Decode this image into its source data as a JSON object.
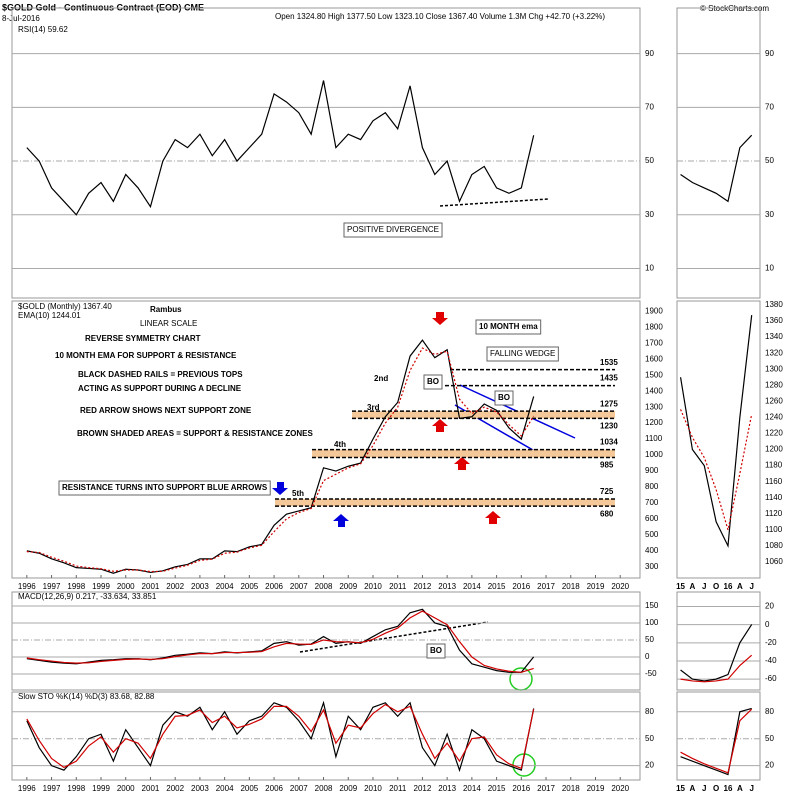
{
  "header": {
    "symbol": "$GOLD Gold - Continuous Contract (EOD) CME",
    "date": "8-Jul-2016",
    "quote": "Open 1324.80  High 1377.50  Low 1323.10  Close 1367.40  Volume 1.3M  Chg +42.70 (+3.22%)",
    "source": "© StockCharts.com"
  },
  "chart_data": [
    {
      "type": "line",
      "label": "RSI(14) 59.62",
      "xlim": [
        1995.4,
        2020.8
      ],
      "ylim": [
        -1,
        107
      ],
      "yticks": [
        10,
        30,
        50,
        70,
        90
      ],
      "grid": true,
      "x": [
        1996,
        1996.5,
        1997,
        1997.5,
        1998,
        1998.5,
        1999,
        1999.5,
        2000,
        2000.5,
        2001,
        2001.5,
        2002,
        2002.5,
        2003,
        2003.5,
        2004,
        2004.5,
        2005,
        2005.5,
        2006,
        2006.5,
        2007,
        2007.5,
        2008,
        2008.5,
        2009,
        2009.5,
        2010,
        2010.5,
        2011,
        2011.5,
        2012,
        2012.5,
        2013,
        2013.5,
        2014,
        2014.5,
        2015,
        2015.5,
        2016,
        2016.5
      ],
      "series": [
        {
          "color": "#000000",
          "values": [
            55,
            50,
            40,
            35,
            30,
            38,
            42,
            35,
            45,
            40,
            33,
            50,
            58,
            55,
            60,
            52,
            58,
            50,
            55,
            60,
            75,
            72,
            68,
            60,
            80,
            55,
            60,
            58,
            65,
            68,
            62,
            78,
            55,
            45,
            50,
            35,
            45,
            48,
            40,
            38,
            40,
            59.62
          ]
        }
      ],
      "annotations": [
        "POSITIVE DIVERGENCE"
      ]
    },
    {
      "type": "line",
      "labels": [
        "$GOLD (Monthly) 1367.40",
        "EMA(10) 1244.01"
      ],
      "xlim": [
        1995.4,
        2020.8
      ],
      "ylim": [
        230,
        1965
      ],
      "yticks": [
        300,
        400,
        500,
        600,
        700,
        800,
        900,
        1000,
        1100,
        1200,
        1300,
        1400,
        1500,
        1600,
        1700,
        1800,
        1900
      ],
      "xticks": [
        1996,
        1997,
        1998,
        1999,
        2000,
        2001,
        2002,
        2003,
        2004,
        2005,
        2006,
        2007,
        2008,
        2009,
        2010,
        2011,
        2012,
        2013,
        2014,
        2015,
        2016,
        2017,
        2018,
        2019,
        2020
      ],
      "x": [
        1996,
        1996.5,
        1997,
        1997.5,
        1998,
        1998.5,
        1999,
        1999.5,
        2000,
        2000.5,
        2001,
        2001.5,
        2002,
        2002.5,
        2003,
        2003.5,
        2004,
        2004.5,
        2005,
        2005.5,
        2006,
        2006.5,
        2007,
        2007.5,
        2008,
        2008.5,
        2009,
        2009.5,
        2010,
        2010.5,
        2011,
        2011.5,
        2012,
        2012.5,
        2013,
        2013.5,
        2014,
        2014.5,
        2015,
        2015.5,
        2016,
        2016.5
      ],
      "series": [
        {
          "color": "#000000",
          "values": [
            400,
            385,
            350,
            325,
            295,
            290,
            285,
            260,
            285,
            280,
            265,
            275,
            300,
            315,
            350,
            350,
            400,
            395,
            425,
            440,
            560,
            630,
            650,
            670,
            920,
            900,
            930,
            950,
            1100,
            1240,
            1330,
            1620,
            1720,
            1610,
            1660,
            1230,
            1240,
            1320,
            1280,
            1170,
            1100,
            1367.4
          ]
        },
        {
          "color": "#d00000",
          "style": "dashed",
          "values": [
            395,
            390,
            360,
            335,
            305,
            295,
            288,
            272,
            280,
            280,
            270,
            272,
            292,
            310,
            340,
            348,
            385,
            392,
            418,
            435,
            520,
            600,
            640,
            665,
            840,
            880,
            920,
            945,
            1060,
            1200,
            1300,
            1530,
            1670,
            1630,
            1650,
            1350,
            1260,
            1300,
            1270,
            1190,
            1120,
            1244.01
          ]
        }
      ],
      "levels": [
        1535,
        1435,
        1275,
        1230,
        1034,
        985,
        725,
        680
      ],
      "annotations": [
        "Rambus",
        "LINEAR SCALE",
        "REVERSE SYMMETRY CHART",
        "10 MONTH EMA FOR SUPPORT & RESISTANCE",
        "BLACK DASHED RAILS = PREVIOUS TOPS",
        "ACTING AS SUPPORT DURING A DECLINE",
        "RED ARROW SHOWS NEXT SUPPORT ZONE",
        "BROWN SHADED AREAS = SUPPORT & RESISTANCE ZONES",
        "RESISTANCE TURNS INTO SUPPORT BLUE ARROWS",
        "5th",
        "4th",
        "3rd",
        "2nd",
        "10 MONTH ema",
        "FALLING WEDGE",
        "BO",
        "BO"
      ]
    },
    {
      "type": "line",
      "label": "MACD(12,26,9) 0.217, -33.634, 33.851",
      "xlim": [
        1995.4,
        2020.8
      ],
      "ylim": [
        -97,
        191
      ],
      "yticks": [
        -50,
        0,
        50,
        100,
        150
      ],
      "grid": true,
      "x": [
        1996,
        1996.5,
        1997,
        1997.5,
        1998,
        1998.5,
        1999,
        1999.5,
        2000,
        2000.5,
        2001,
        2001.5,
        2002,
        2002.5,
        2003,
        2003.5,
        2004,
        2004.5,
        2005,
        2005.5,
        2006,
        2006.5,
        2007,
        2007.5,
        2008,
        2008.5,
        2009,
        2009.5,
        2010,
        2010.5,
        2011,
        2011.5,
        2012,
        2012.5,
        2013,
        2013.5,
        2014,
        2014.5,
        2015,
        2015.5,
        2016,
        2016.5
      ],
      "series": [
        {
          "color": "#000000",
          "values": [
            -5,
            -10,
            -15,
            -18,
            -20,
            -15,
            -10,
            -8,
            -5,
            -5,
            -8,
            -3,
            5,
            8,
            12,
            10,
            15,
            12,
            15,
            18,
            40,
            45,
            35,
            38,
            60,
            40,
            45,
            40,
            60,
            80,
            90,
            130,
            140,
            100,
            90,
            20,
            -20,
            -30,
            -40,
            -45,
            -45,
            0.217
          ]
        },
        {
          "color": "#d00000",
          "values": [
            -3,
            -8,
            -12,
            -16,
            -18,
            -17,
            -13,
            -10,
            -7,
            -6,
            -7,
            -5,
            1,
            6,
            10,
            10,
            13,
            13,
            14,
            16,
            30,
            40,
            38,
            37,
            50,
            45,
            44,
            42,
            52,
            70,
            85,
            115,
            135,
            115,
            95,
            45,
            0,
            -25,
            -35,
            -42,
            -45,
            -33.634
          ]
        }
      ],
      "annotations": [
        "BO"
      ]
    },
    {
      "type": "line",
      "label": "Slow STO %K(14) %D(3) 83.68, 82.88",
      "xlim": [
        1995.4,
        2020.8
      ],
      "ylim": [
        4,
        102
      ],
      "yticks": [
        20,
        50,
        80
      ],
      "grid": true,
      "xticks": [
        1996,
        1997,
        1998,
        1999,
        2000,
        2001,
        2002,
        2003,
        2004,
        2005,
        2006,
        2007,
        2008,
        2009,
        2010,
        2011,
        2012,
        2013,
        2014,
        2015,
        2016,
        2017,
        2018,
        2019,
        2020
      ],
      "x": [
        1996,
        1996.5,
        1997,
        1997.5,
        1998,
        1998.5,
        1999,
        1999.5,
        2000,
        2000.5,
        2001,
        2001.5,
        2002,
        2002.5,
        2003,
        2003.5,
        2004,
        2004.5,
        2005,
        2005.5,
        2006,
        2006.5,
        2007,
        2007.5,
        2008,
        2008.5,
        2009,
        2009.5,
        2010,
        2010.5,
        2011,
        2011.5,
        2012,
        2012.5,
        2013,
        2013.5,
        2014,
        2014.5,
        2015,
        2015.5,
        2016,
        2016.5
      ],
      "series": [
        {
          "color": "#000000",
          "values": [
            70,
            40,
            20,
            15,
            30,
            50,
            55,
            25,
            60,
            40,
            20,
            65,
            80,
            75,
            85,
            60,
            80,
            55,
            70,
            75,
            90,
            85,
            70,
            50,
            90,
            30,
            75,
            60,
            85,
            90,
            75,
            90,
            40,
            20,
            55,
            15,
            60,
            50,
            25,
            20,
            15,
            83.68
          ]
        },
        {
          "color": "#d00000",
          "values": [
            72,
            48,
            28,
            18,
            25,
            42,
            52,
            35,
            50,
            45,
            28,
            55,
            75,
            76,
            82,
            68,
            75,
            62,
            66,
            72,
            86,
            86,
            75,
            58,
            82,
            45,
            65,
            62,
            78,
            88,
            80,
            86,
            55,
            28,
            45,
            25,
            50,
            52,
            32,
            22,
            17,
            82.88
          ]
        }
      ]
    },
    {
      "type": "line",
      "ylim": [
        -1,
        107
      ],
      "yticks": [
        10,
        30,
        50,
        70,
        90
      ],
      "grid": true,
      "series": [
        {
          "color": "#000000",
          "values": [
            45,
            42,
            40,
            38,
            35,
            55,
            59.62
          ]
        }
      ]
    },
    {
      "type": "line",
      "categories": [
        "15",
        "A",
        "J",
        "O",
        "16",
        "A",
        "J"
      ],
      "ylim": [
        1040,
        1385
      ],
      "yticks": [
        1060,
        1080,
        1100,
        1120,
        1140,
        1160,
        1180,
        1200,
        1220,
        1240,
        1260,
        1280,
        1300,
        1320,
        1340,
        1360,
        1380
      ],
      "series": [
        {
          "color": "#000000",
          "values": [
            1290,
            1200,
            1180,
            1110,
            1080,
            1240,
            1367.4
          ]
        },
        {
          "color": "#d00000",
          "style": "dashed",
          "values": [
            1250,
            1215,
            1190,
            1150,
            1100,
            1170,
            1244.01
          ]
        }
      ]
    },
    {
      "type": "line",
      "ylim": [
        -72,
        36
      ],
      "yticks": [
        20,
        0,
        -20,
        -40,
        -60
      ],
      "grid": true,
      "series": [
        {
          "color": "#000000",
          "values": [
            -50,
            -60,
            -62,
            -60,
            -55,
            -20,
            0.217
          ]
        },
        {
          "color": "#d00000",
          "values": [
            -60,
            -62,
            -63,
            -62,
            -60,
            -45,
            -33.634
          ]
        }
      ]
    },
    {
      "type": "line",
      "categories": [
        "15",
        "A",
        "J",
        "O",
        "16",
        "A",
        "J"
      ],
      "ylim": [
        4,
        102
      ],
      "yticks": [
        20,
        50,
        80
      ],
      "grid": true,
      "series": [
        {
          "color": "#000000",
          "values": [
            30,
            25,
            20,
            15,
            10,
            80,
            83.68
          ]
        },
        {
          "color": "#d00000",
          "values": [
            35,
            28,
            22,
            17,
            12,
            70,
            82.88
          ]
        }
      ]
    }
  ]
}
